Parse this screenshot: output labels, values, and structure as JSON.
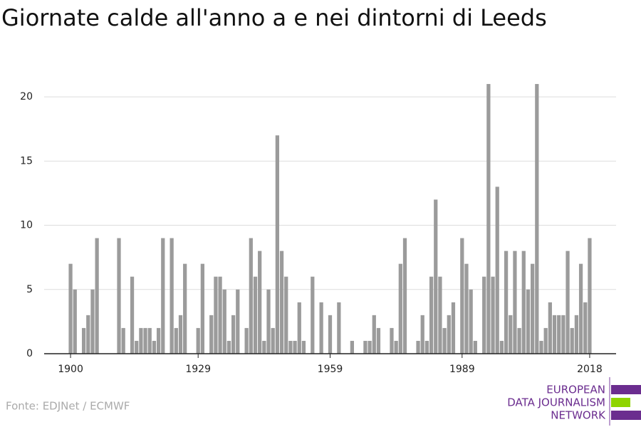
{
  "chart_data": {
    "type": "bar",
    "title": "Giornate calde all'anno a e nei dintorni di Leeds",
    "x": [
      1900,
      1901,
      1902,
      1903,
      1904,
      1905,
      1906,
      1907,
      1908,
      1909,
      1910,
      1911,
      1912,
      1913,
      1914,
      1915,
      1916,
      1917,
      1918,
      1919,
      1920,
      1921,
      1922,
      1923,
      1924,
      1925,
      1926,
      1927,
      1928,
      1929,
      1930,
      1931,
      1932,
      1933,
      1934,
      1935,
      1936,
      1937,
      1938,
      1939,
      1940,
      1941,
      1942,
      1943,
      1944,
      1945,
      1946,
      1947,
      1948,
      1949,
      1950,
      1951,
      1952,
      1953,
      1954,
      1955,
      1956,
      1957,
      1958,
      1959,
      1960,
      1961,
      1962,
      1963,
      1964,
      1965,
      1966,
      1967,
      1968,
      1969,
      1970,
      1971,
      1972,
      1973,
      1974,
      1975,
      1976,
      1977,
      1978,
      1979,
      1980,
      1981,
      1982,
      1983,
      1984,
      1985,
      1986,
      1987,
      1988,
      1989,
      1990,
      1991,
      1992,
      1993,
      1994,
      1995,
      1996,
      1997,
      1998,
      1999,
      2000,
      2001,
      2002,
      2003,
      2004,
      2005,
      2006,
      2007,
      2008,
      2009,
      2010,
      2011,
      2012,
      2013,
      2014,
      2015,
      2016,
      2017,
      2018
    ],
    "values": [
      7,
      5,
      0,
      2,
      3,
      5,
      9,
      0,
      0,
      0,
      0,
      9,
      2,
      0,
      6,
      1,
      2,
      2,
      2,
      1,
      2,
      9,
      0,
      9,
      2,
      3,
      7,
      0,
      0,
      2,
      7,
      0,
      3,
      6,
      6,
      5,
      1,
      3,
      5,
      0,
      2,
      9,
      6,
      8,
      1,
      5,
      2,
      17,
      8,
      6,
      1,
      1,
      4,
      1,
      0,
      6,
      0,
      4,
      0,
      3,
      0,
      4,
      0,
      0,
      1,
      0,
      0,
      1,
      1,
      3,
      2,
      0,
      0,
      2,
      1,
      7,
      9,
      0,
      0,
      1,
      3,
      1,
      6,
      12,
      6,
      2,
      3,
      4,
      0,
      9,
      7,
      5,
      1,
      0,
      6,
      21,
      6,
      13,
      1,
      8,
      3,
      8,
      2,
      8,
      5,
      7,
      21,
      1,
      2,
      4,
      3,
      3,
      3,
      8,
      2,
      3,
      7,
      4,
      9
    ],
    "color": "#9b9b9b",
    "xlim": [
      1894,
      2024
    ],
    "xticks": [
      1900,
      1929,
      1959,
      1989,
      2018
    ],
    "ylim": [
      0,
      22
    ],
    "yticks": [
      0,
      5,
      10,
      15,
      20
    ],
    "grid": true
  },
  "footer": {
    "source": "Fonte: EDJNet / ECMWF",
    "logo": [
      "EUROPEAN",
      "DATA JOURNALISM",
      "NETWORK"
    ]
  }
}
